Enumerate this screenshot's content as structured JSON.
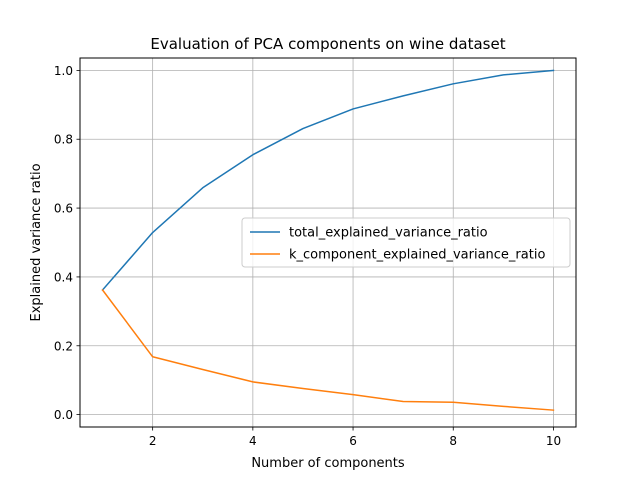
{
  "chart_data": {
    "type": "line",
    "title": "Evaluation of PCA components on wine dataset",
    "xlabel": "Number of components",
    "ylabel": "Explained variance ratio",
    "x": [
      1,
      2,
      3,
      4,
      5,
      6,
      7,
      8,
      9,
      10
    ],
    "xlim": [
      0.55,
      10.45
    ],
    "ylim": [
      -0.036,
      1.036
    ],
    "xticks": [
      2,
      4,
      6,
      8,
      10
    ],
    "yticks": [
      0.0,
      0.2,
      0.4,
      0.6,
      0.8,
      1.0
    ],
    "xtick_labels": [
      "2",
      "4",
      "6",
      "8",
      "10"
    ],
    "ytick_labels": [
      "0.0",
      "0.2",
      "0.4",
      "0.6",
      "0.8",
      "1.0"
    ],
    "grid": true,
    "legend_position": "center-right",
    "series": [
      {
        "name": "total_explained_variance_ratio",
        "color": "#1f77b4",
        "values": [
          0.362,
          0.529,
          0.659,
          0.755,
          0.831,
          0.888,
          0.926,
          0.961,
          0.987,
          1.0
        ]
      },
      {
        "name": "k_component_explained_variance_ratio",
        "color": "#ff7f0e",
        "values": [
          0.362,
          0.168,
          0.131,
          0.095,
          0.076,
          0.058,
          0.038,
          0.036,
          0.024,
          0.013
        ]
      }
    ]
  }
}
